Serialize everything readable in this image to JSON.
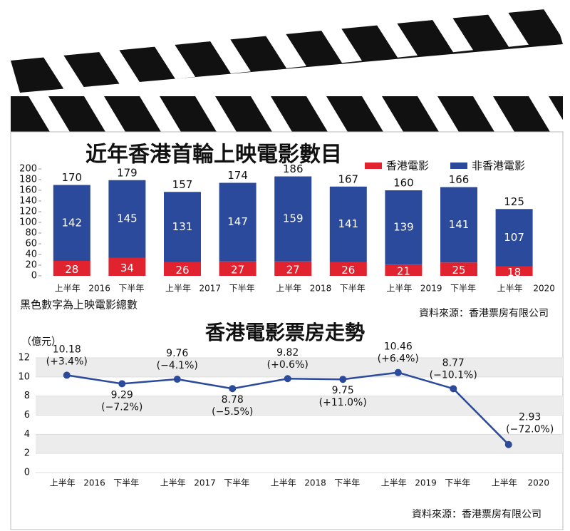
{
  "chart_data": [
    {
      "type": "stacked_bar",
      "title": "近年香港首輪上映電影數目",
      "categories": [
        "上半年",
        "下半年",
        "上半年",
        "下半年",
        "上半年",
        "下半年",
        "上半年",
        "下半年",
        "上半年"
      ],
      "years": [
        "2016",
        "2017",
        "2018",
        "2019",
        "2020"
      ],
      "series": [
        {
          "name": "香港電影",
          "color": "#e0232e",
          "values": [
            28,
            34,
            26,
            27,
            27,
            26,
            21,
            25,
            18
          ]
        },
        {
          "name": "非香港電影",
          "color": "#2b4a9c",
          "values": [
            142,
            145,
            131,
            147,
            159,
            141,
            139,
            141,
            107
          ]
        }
      ],
      "totals": [
        170,
        179,
        157,
        174,
        186,
        167,
        160,
        166,
        125
      ],
      "ylim": [
        0,
        200
      ],
      "yticks": [
        0,
        20,
        40,
        60,
        80,
        100,
        120,
        140,
        160,
        180,
        200
      ],
      "note": "黑色數字為上映電影總數",
      "source": "資料來源：香港票房有限公司",
      "legend": "top-right"
    },
    {
      "type": "line",
      "title": "香港電影票房走勢",
      "y_label": "（億元）",
      "categories": [
        "上半年",
        "下半年",
        "上半年",
        "下半年",
        "上半年",
        "下半年",
        "上半年",
        "下半年",
        "上半年"
      ],
      "years": [
        "2016",
        "2017",
        "2018",
        "2019",
        "2020"
      ],
      "values": [
        10.18,
        9.29,
        9.76,
        8.78,
        9.82,
        9.75,
        10.46,
        8.77,
        2.93
      ],
      "changes": [
        "(+3.4%)",
        "(−7.2%)",
        "(−4.1%)",
        "(−5.5%)",
        "(+0.6%)",
        "(+11.0%)",
        "(+6.4%)",
        "(−10.1%)",
        "(−72.0%)"
      ],
      "color": "#2b4a9c",
      "ylim": [
        0,
        12
      ],
      "yticks": [
        0,
        2,
        4,
        6,
        8,
        10,
        12
      ],
      "grid": true,
      "source": "資料來源：香港票房有限公司"
    }
  ]
}
